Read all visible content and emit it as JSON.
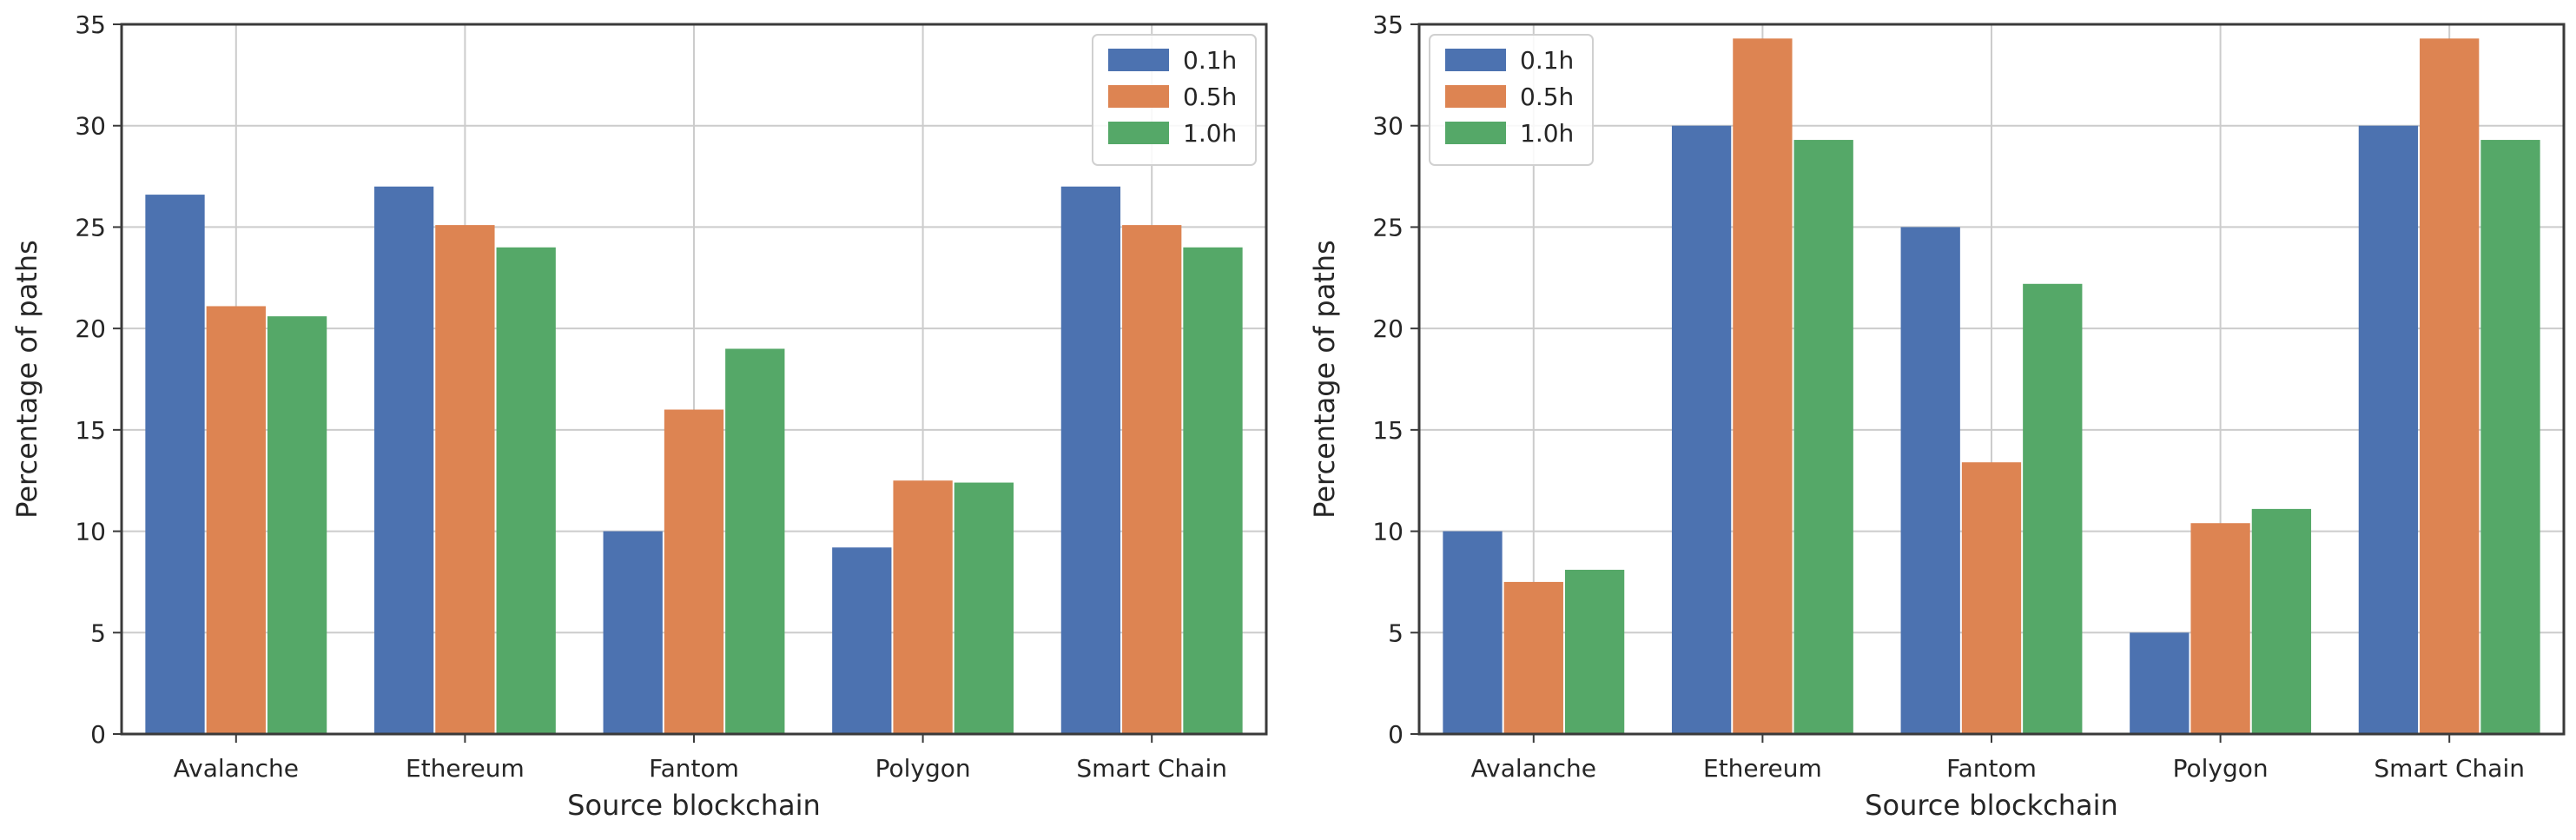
{
  "colors": {
    "0.1h": "#4c72b0",
    "0.5h": "#dd8452",
    "1.0h": "#55a868",
    "grid": "#cccccc",
    "frame": "#3a3a3a"
  },
  "chart_data": [
    {
      "type": "bar",
      "title": "",
      "xlabel": "Source blockchain",
      "ylabel": "Percentage of paths",
      "ylim": [
        0,
        35
      ],
      "yticks": [
        0,
        5,
        10,
        15,
        20,
        25,
        30,
        35
      ],
      "legend_position": "top-right",
      "categories": [
        "Avalanche",
        "Ethereum",
        "Fantom",
        "Polygon",
        "Smart Chain"
      ],
      "series": [
        {
          "name": "0.1h",
          "values": [
            26.6,
            27.0,
            10.0,
            9.2,
            27.0
          ]
        },
        {
          "name": "0.5h",
          "values": [
            21.1,
            25.1,
            16.0,
            12.5,
            25.1
          ]
        },
        {
          "name": "1.0h",
          "values": [
            20.6,
            24.0,
            19.0,
            12.4,
            24.0
          ]
        }
      ]
    },
    {
      "type": "bar",
      "title": "",
      "xlabel": "Source blockchain",
      "ylabel": "Percentage of paths",
      "ylim": [
        0,
        35
      ],
      "yticks": [
        0,
        5,
        10,
        15,
        20,
        25,
        30,
        35
      ],
      "legend_position": "top-left",
      "categories": [
        "Avalanche",
        "Ethereum",
        "Fantom",
        "Polygon",
        "Smart Chain"
      ],
      "series": [
        {
          "name": "0.1h",
          "values": [
            10.0,
            30.0,
            25.0,
            5.0,
            30.0
          ]
        },
        {
          "name": "0.5h",
          "values": [
            7.5,
            34.3,
            13.4,
            10.4,
            34.3
          ]
        },
        {
          "name": "1.0h",
          "values": [
            8.1,
            29.3,
            22.2,
            11.1,
            29.3
          ]
        }
      ]
    }
  ]
}
